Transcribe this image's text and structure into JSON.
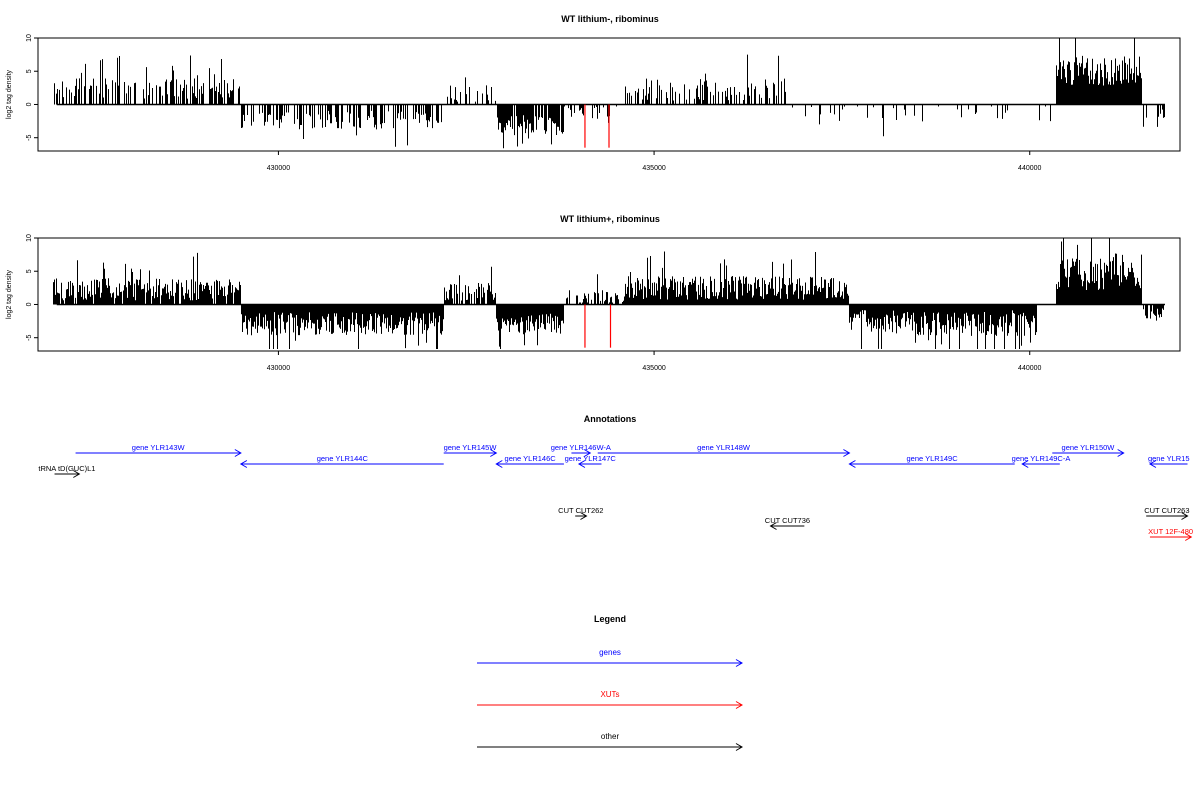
{
  "chart_data": [
    {
      "type": "bar",
      "title": "WT lithium-, ribominus",
      "ylabel": "log2 tag density",
      "xlim": [
        426800,
        442000
      ],
      "ylim": [
        -7,
        10
      ],
      "yticks": [
        -5,
        0,
        5,
        10
      ],
      "xticks": [
        430000,
        435000,
        440000
      ],
      "xtick_labels": [
        "430000",
        "435000",
        "440000"
      ],
      "bar_color": "#000000",
      "highlight_color": "#ff0000",
      "highlight_bars": [
        {
          "x": 434080,
          "value": -6.5
        },
        {
          "x": 434400,
          "value": -6.5
        }
      ],
      "regions": [
        {
          "x": [
            427000,
            429500
          ],
          "sign": 1,
          "mean": 1.8,
          "amp": 2.2,
          "density": 0.5
        },
        {
          "x": [
            429500,
            432200
          ],
          "sign": -1,
          "mean": 1.8,
          "amp": 2.0,
          "density": 0.5
        },
        {
          "x": [
            432200,
            432900
          ],
          "sign": 1,
          "mean": 1.0,
          "amp": 2.0,
          "density": 0.3
        },
        {
          "x": [
            432900,
            433800
          ],
          "sign": -1,
          "mean": 2.5,
          "amp": 2.2,
          "density": 0.9
        },
        {
          "x": [
            433800,
            434600
          ],
          "sign": -1,
          "mean": 0.8,
          "amp": 1.5,
          "density": 0.3
        },
        {
          "x": [
            434600,
            436800
          ],
          "sign": 1,
          "mean": 1.6,
          "amp": 2.4,
          "density": 0.5
        },
        {
          "x": [
            436800,
            440300
          ],
          "sign": -1,
          "mean": 0.8,
          "amp": 1.8,
          "density": 0.12
        },
        {
          "x": [
            440350,
            441500
          ],
          "sign": 1,
          "mean": 4.0,
          "amp": 3.5,
          "density": 1.0
        },
        {
          "x": [
            441500,
            441800
          ],
          "sign": -1,
          "mean": 1.2,
          "amp": 1.2,
          "density": 0.4
        }
      ]
    },
    {
      "type": "bar",
      "title": "WT lithium+, ribominus",
      "ylabel": "log2 tag density",
      "xlim": [
        426800,
        442000
      ],
      "ylim": [
        -7,
        10
      ],
      "yticks": [
        -5,
        0,
        5,
        10
      ],
      "xticks": [
        430000,
        435000,
        440000
      ],
      "xtick_labels": [
        "430000",
        "435000",
        "440000"
      ],
      "bar_color": "#000000",
      "highlight_color": "#ff0000",
      "highlight_bars": [
        {
          "x": 434080,
          "value": -6.5
        },
        {
          "x": 434420,
          "value": -6.5
        }
      ],
      "regions": [
        {
          "x": [
            427000,
            429500
          ],
          "sign": 1,
          "mean": 1.6,
          "amp": 2.4,
          "density": 0.9
        },
        {
          "x": [
            429500,
            432200
          ],
          "sign": -1,
          "mean": 2.2,
          "amp": 2.6,
          "density": 1.0
        },
        {
          "x": [
            432200,
            432900
          ],
          "sign": 1,
          "mean": 1.4,
          "amp": 2.0,
          "density": 0.8
        },
        {
          "x": [
            432900,
            433800
          ],
          "sign": -1,
          "mean": 2.2,
          "amp": 2.4,
          "density": 1.0
        },
        {
          "x": [
            433800,
            434600
          ],
          "sign": 1,
          "mean": 0.8,
          "amp": 1.6,
          "density": 0.6
        },
        {
          "x": [
            434600,
            437600
          ],
          "sign": 1,
          "mean": 1.8,
          "amp": 2.6,
          "density": 1.0
        },
        {
          "x": [
            437600,
            440100
          ],
          "sign": -1,
          "mean": 2.0,
          "amp": 2.8,
          "density": 1.0
        },
        {
          "x": [
            440350,
            441500
          ],
          "sign": 1,
          "mean": 3.8,
          "amp": 4.0,
          "density": 1.0
        },
        {
          "x": [
            441500,
            441800
          ],
          "sign": -1,
          "mean": 1.0,
          "amp": 1.2,
          "density": 0.7
        }
      ]
    }
  ],
  "annotations": {
    "title": "Annotations",
    "features": [
      {
        "label": "tRNA tD(GUC)L1",
        "start": 427020,
        "end": 427350,
        "strand": "+",
        "kind": "other",
        "row": 3
      },
      {
        "label": "gene YLR143W",
        "start": 427300,
        "end": 429500,
        "strand": "+",
        "kind": "gene",
        "row": 1
      },
      {
        "label": "gene YLR144C",
        "start": 429500,
        "end": 432200,
        "strand": "-",
        "kind": "gene",
        "row": 2
      },
      {
        "label": "gene YLR145W",
        "start": 432200,
        "end": 432900,
        "strand": "+",
        "kind": "gene",
        "row": 1
      },
      {
        "label": "gene YLR146C",
        "start": 432900,
        "end": 433800,
        "strand": "-",
        "kind": "gene",
        "row": 2
      },
      {
        "label": "gene YLR146W-A",
        "start": 433900,
        "end": 434150,
        "strand": "+",
        "kind": "gene",
        "row": 1
      },
      {
        "label": "gene YLR147C",
        "start": 434000,
        "end": 434300,
        "strand": "-",
        "kind": "gene",
        "row": 2
      },
      {
        "label": "gene YLR148W",
        "start": 434250,
        "end": 437600,
        "strand": "+",
        "kind": "gene",
        "row": 1
      },
      {
        "label": "gene YLR149C",
        "start": 437600,
        "end": 439800,
        "strand": "-",
        "kind": "gene",
        "row": 2
      },
      {
        "label": "gene YLR149C-A",
        "start": 439900,
        "end": 440400,
        "strand": "-",
        "kind": "gene",
        "row": 2
      },
      {
        "label": "gene YLR150W",
        "start": 440300,
        "end": 441250,
        "strand": "+",
        "kind": "gene",
        "row": 1
      },
      {
        "label": "gene YLR15",
        "start": 441600,
        "end": 442100,
        "strand": "-",
        "kind": "gene",
        "row": 2
      },
      {
        "label": "CUT CUT262",
        "start": 433950,
        "end": 434100,
        "strand": "+",
        "kind": "other",
        "row": 5
      },
      {
        "label": "CUT CUT736",
        "start": 436550,
        "end": 437000,
        "strand": "-",
        "kind": "other",
        "row": 6
      },
      {
        "label": "CUT CUT263",
        "start": 441550,
        "end": 442100,
        "strand": "+",
        "kind": "other",
        "row": 5
      },
      {
        "label": "XUT 12F-480",
        "start": 441600,
        "end": 442150,
        "strand": "+",
        "kind": "xut",
        "row": 7
      }
    ]
  },
  "legend": {
    "title": "Legend",
    "items": [
      {
        "label": "genes",
        "color": "#0000ff"
      },
      {
        "label": "XUTs",
        "color": "#ff0000"
      },
      {
        "label": "other",
        "color": "#000000"
      }
    ]
  },
  "colors": {
    "gene": "#0000ff",
    "xut": "#ff0000",
    "other": "#000000"
  }
}
